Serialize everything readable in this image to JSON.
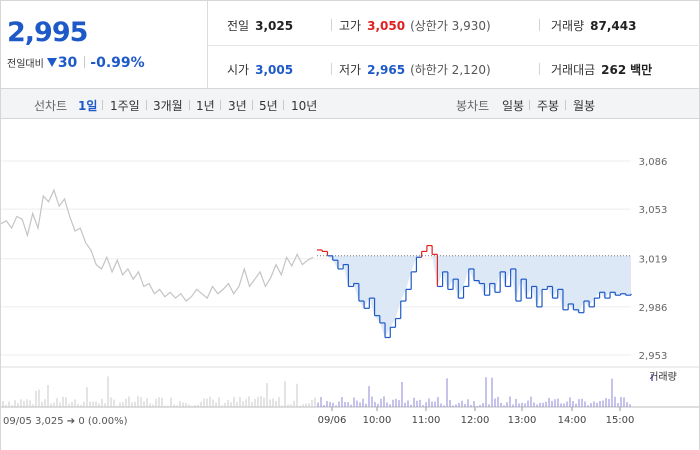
{
  "summary": {
    "price": "2,995",
    "change_label": "전일대비",
    "change_value": "30",
    "change_rate": "-0.99%",
    "prev_close": {
      "label": "전일",
      "value": "3,025"
    },
    "high": {
      "label": "고가",
      "value": "3,050",
      "limit": "(상한가 3,930)"
    },
    "volume": {
      "label": "거래량",
      "value": "87,443"
    },
    "open": {
      "label": "시가",
      "value": "3,005"
    },
    "low": {
      "label": "저가",
      "value": "2,965",
      "limit": "(하한가 2,120)"
    },
    "trade_amount": {
      "label": "거래대금",
      "value": "262",
      "unit": "백만"
    }
  },
  "toolbar": {
    "period_label": "선차트",
    "periods": [
      "1일",
      "1주일",
      "3개월",
      "1년",
      "3년",
      "5년",
      "10년"
    ],
    "active_period": "1일",
    "candle_label": "봉차트",
    "candles": [
      "일봉",
      "주봉",
      "월봉"
    ]
  },
  "colors": {
    "up": "#e0201e",
    "down": "#1e59c8",
    "prev_day_line": "#c4c4c4",
    "fill_below_prev": "#dde8f7"
  },
  "chart_data": {
    "type": "line",
    "ylim": [
      2953,
      3086
    ],
    "y_ticks": [
      3086,
      3053,
      3019,
      2986,
      2953
    ],
    "y_tick_labels": [
      "3,086",
      "3,053",
      "3,019",
      "2,986",
      "2,953"
    ],
    "x_tick_labels": [
      "09/06",
      "10:00",
      "11:00",
      "12:00",
      "13:00",
      "14:00",
      "15:00"
    ],
    "reference_line": 3021,
    "series": [
      {
        "role": "previous-day",
        "values": [
          3043,
          3045,
          3040,
          3048,
          3046,
          3035,
          3050,
          3040,
          3062,
          3058,
          3066,
          3055,
          3060,
          3048,
          3038,
          3040,
          3030,
          3025,
          3015,
          3012,
          3020,
          3010,
          3018,
          3008,
          3012,
          3005,
          3010,
          3000,
          3002,
          2995,
          2998,
          2993,
          2996,
          2992,
          2995,
          2990,
          2993,
          2998,
          2995,
          2992,
          3000,
          2995,
          2998,
          3002,
          2995,
          3000,
          3012,
          3000,
          3005,
          3010,
          3000,
          3006,
          3015,
          3008,
          3020,
          3014,
          3022,
          3015,
          3018,
          3020
        ]
      },
      {
        "role": "today",
        "values": [
          3025,
          3024,
          3021,
          3018,
          3012,
          3015,
          3000,
          3002,
          2990,
          2985,
          2992,
          2980,
          2975,
          2965,
          2972,
          2978,
          2990,
          2998,
          3010,
          3020,
          3024,
          3028,
          3022,
          3000,
          3010,
          2998,
          3005,
          2992,
          3000,
          3012,
          3004,
          3002,
          2994,
          3002,
          2996,
          3010,
          3000,
          3012,
          2990,
          3005,
          2992,
          3000,
          2986,
          2998,
          3000,
          2992,
          2998,
          2984,
          2988,
          2984,
          2982,
          2990,
          2986,
          2992,
          2996,
          2992,
          2996,
          2994,
          2995,
          2994,
          2995
        ]
      }
    ],
    "volume": {
      "legend": "거래량",
      "footer": "09/05  3,025 ➔ 0 (0.00%)"
    }
  }
}
